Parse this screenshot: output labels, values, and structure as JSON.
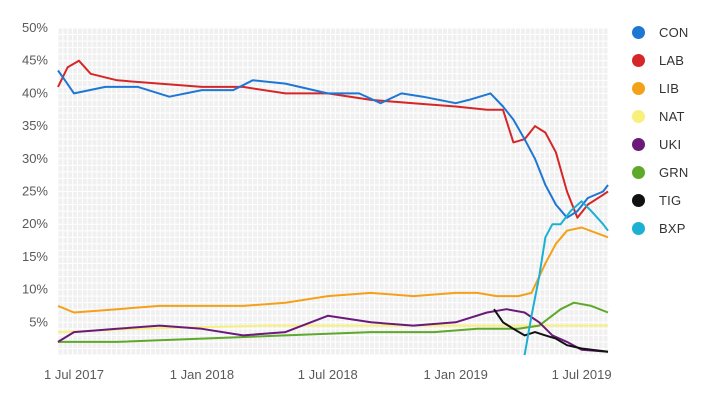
{
  "chart_data": {
    "type": "line",
    "title": "",
    "xlabel": "",
    "ylabel": "",
    "ylim": [
      0,
      50
    ],
    "xlim": [
      "2017-06-08",
      "2019-08-08"
    ],
    "y_ticks": [
      5,
      10,
      15,
      20,
      25,
      30,
      35,
      40,
      45,
      50
    ],
    "y_tick_labels": [
      "5%",
      "10%",
      "15%",
      "20%",
      "25%",
      "30%",
      "35%",
      "40%",
      "45%",
      "50%"
    ],
    "x_ticks": [
      "2017-07-01",
      "2018-01-01",
      "2018-07-01",
      "2019-01-01",
      "2019-07-01"
    ],
    "x_tick_labels": [
      "1 Jul 2017",
      "1 Jan 2018",
      "1 Jul 2018",
      "1 Jan 2019",
      "1 Jul 2019"
    ],
    "grid": true,
    "legend_position": "right",
    "series": [
      {
        "name": "CON",
        "color": "#1f77d4",
        "points": [
          [
            "2017-06-08",
            43.5
          ],
          [
            "2017-06-18",
            42
          ],
          [
            "2017-07-01",
            40
          ],
          [
            "2017-08-15",
            41
          ],
          [
            "2017-10-01",
            41
          ],
          [
            "2017-11-15",
            39.5
          ],
          [
            "2018-01-01",
            40.5
          ],
          [
            "2018-02-15",
            40.5
          ],
          [
            "2018-03-15",
            42
          ],
          [
            "2018-05-01",
            41.5
          ],
          [
            "2018-07-01",
            40
          ],
          [
            "2018-08-15",
            40
          ],
          [
            "2018-09-15",
            38.5
          ],
          [
            "2018-10-15",
            40
          ],
          [
            "2018-11-15",
            39.5
          ],
          [
            "2019-01-01",
            38.5
          ],
          [
            "2019-01-20",
            39
          ],
          [
            "2019-02-20",
            40
          ],
          [
            "2019-03-10",
            38
          ],
          [
            "2019-03-25",
            36
          ],
          [
            "2019-04-10",
            33
          ],
          [
            "2019-04-25",
            30
          ],
          [
            "2019-05-10",
            26
          ],
          [
            "2019-05-25",
            23
          ],
          [
            "2019-06-10",
            21
          ],
          [
            "2019-06-25",
            22
          ],
          [
            "2019-07-10",
            24
          ],
          [
            "2019-08-01",
            25
          ],
          [
            "2019-08-08",
            26
          ]
        ]
      },
      {
        "name": "LAB",
        "color": "#d62728",
        "points": [
          [
            "2017-06-08",
            41
          ],
          [
            "2017-06-22",
            44
          ],
          [
            "2017-07-08",
            45
          ],
          [
            "2017-07-25",
            43
          ],
          [
            "2017-09-01",
            42
          ],
          [
            "2017-11-01",
            41.5
          ],
          [
            "2018-01-01",
            41
          ],
          [
            "2018-03-01",
            41
          ],
          [
            "2018-05-01",
            40
          ],
          [
            "2018-07-01",
            40
          ],
          [
            "2018-09-01",
            39
          ],
          [
            "2018-11-01",
            38.5
          ],
          [
            "2019-01-01",
            38
          ],
          [
            "2019-02-15",
            37.5
          ],
          [
            "2019-03-10",
            37.5
          ],
          [
            "2019-03-25",
            32.5
          ],
          [
            "2019-04-10",
            33
          ],
          [
            "2019-04-25",
            35
          ],
          [
            "2019-05-10",
            34
          ],
          [
            "2019-05-25",
            31
          ],
          [
            "2019-06-10",
            25
          ],
          [
            "2019-06-25",
            21
          ],
          [
            "2019-07-10",
            23
          ],
          [
            "2019-08-01",
            24.5
          ],
          [
            "2019-08-08",
            25
          ]
        ]
      },
      {
        "name": "LIB",
        "color": "#f4a11a",
        "points": [
          [
            "2017-06-08",
            7.5
          ],
          [
            "2017-07-01",
            6.5
          ],
          [
            "2017-09-01",
            7
          ],
          [
            "2017-11-01",
            7.5
          ],
          [
            "2018-01-01",
            7.5
          ],
          [
            "2018-03-01",
            7.5
          ],
          [
            "2018-05-01",
            8
          ],
          [
            "2018-07-01",
            9
          ],
          [
            "2018-09-01",
            9.5
          ],
          [
            "2018-11-01",
            9
          ],
          [
            "2019-01-01",
            9.5
          ],
          [
            "2019-02-01",
            9.5
          ],
          [
            "2019-03-01",
            9
          ],
          [
            "2019-04-01",
            9
          ],
          [
            "2019-04-20",
            9.5
          ],
          [
            "2019-05-10",
            14
          ],
          [
            "2019-05-25",
            17
          ],
          [
            "2019-06-10",
            19
          ],
          [
            "2019-07-01",
            19.5
          ],
          [
            "2019-08-08",
            18
          ]
        ]
      },
      {
        "name": "NAT",
        "color": "#f8f07a",
        "points": [
          [
            "2017-06-08",
            3.5
          ],
          [
            "2017-10-01",
            4
          ],
          [
            "2018-04-01",
            4.5
          ],
          [
            "2018-10-01",
            4.5
          ],
          [
            "2019-04-01",
            4.5
          ],
          [
            "2019-08-08",
            4.5
          ]
        ]
      },
      {
        "name": "UKI",
        "color": "#6b1a7a",
        "points": [
          [
            "2017-06-08",
            2
          ],
          [
            "2017-07-01",
            3.5
          ],
          [
            "2017-09-01",
            4
          ],
          [
            "2017-11-01",
            4.5
          ],
          [
            "2018-01-01",
            4
          ],
          [
            "2018-03-01",
            3
          ],
          [
            "2018-05-01",
            3.5
          ],
          [
            "2018-07-01",
            6
          ],
          [
            "2018-09-01",
            5
          ],
          [
            "2018-11-01",
            4.5
          ],
          [
            "2019-01-01",
            5
          ],
          [
            "2019-02-15",
            6.5
          ],
          [
            "2019-03-15",
            7
          ],
          [
            "2019-04-10",
            6.5
          ],
          [
            "2019-05-01",
            5
          ],
          [
            "2019-05-20",
            3
          ],
          [
            "2019-06-10",
            2
          ],
          [
            "2019-07-01",
            0.8
          ],
          [
            "2019-08-08",
            0.5
          ]
        ]
      },
      {
        "name": "GRN",
        "color": "#5ea82a",
        "points": [
          [
            "2017-06-08",
            2
          ],
          [
            "2017-09-01",
            2
          ],
          [
            "2018-01-01",
            2.5
          ],
          [
            "2018-05-01",
            3
          ],
          [
            "2018-09-01",
            3.5
          ],
          [
            "2018-12-01",
            3.5
          ],
          [
            "2019-02-01",
            4
          ],
          [
            "2019-04-01",
            4
          ],
          [
            "2019-05-01",
            4.5
          ],
          [
            "2019-06-01",
            7
          ],
          [
            "2019-06-20",
            8
          ],
          [
            "2019-07-15",
            7.5
          ],
          [
            "2019-08-08",
            6.5
          ]
        ]
      },
      {
        "name": "TIG",
        "color": "#111111",
        "points": [
          [
            "2019-02-25",
            7
          ],
          [
            "2019-03-10",
            5
          ],
          [
            "2019-03-25",
            4
          ],
          [
            "2019-04-10",
            3
          ],
          [
            "2019-04-25",
            3.5
          ],
          [
            "2019-05-10",
            3
          ],
          [
            "2019-05-25",
            2.5
          ],
          [
            "2019-06-10",
            1.5
          ],
          [
            "2019-07-01",
            1
          ],
          [
            "2019-08-08",
            0.5
          ]
        ]
      },
      {
        "name": "BXP",
        "color": "#1cb0d2",
        "points": [
          [
            "2019-04-10",
            0
          ],
          [
            "2019-04-20",
            6
          ],
          [
            "2019-05-01",
            12
          ],
          [
            "2019-05-10",
            18
          ],
          [
            "2019-05-20",
            20
          ],
          [
            "2019-06-01",
            20
          ],
          [
            "2019-06-15",
            22
          ],
          [
            "2019-07-01",
            23.5
          ],
          [
            "2019-07-15",
            22
          ],
          [
            "2019-08-01",
            20
          ],
          [
            "2019-08-08",
            19
          ]
        ]
      }
    ]
  }
}
